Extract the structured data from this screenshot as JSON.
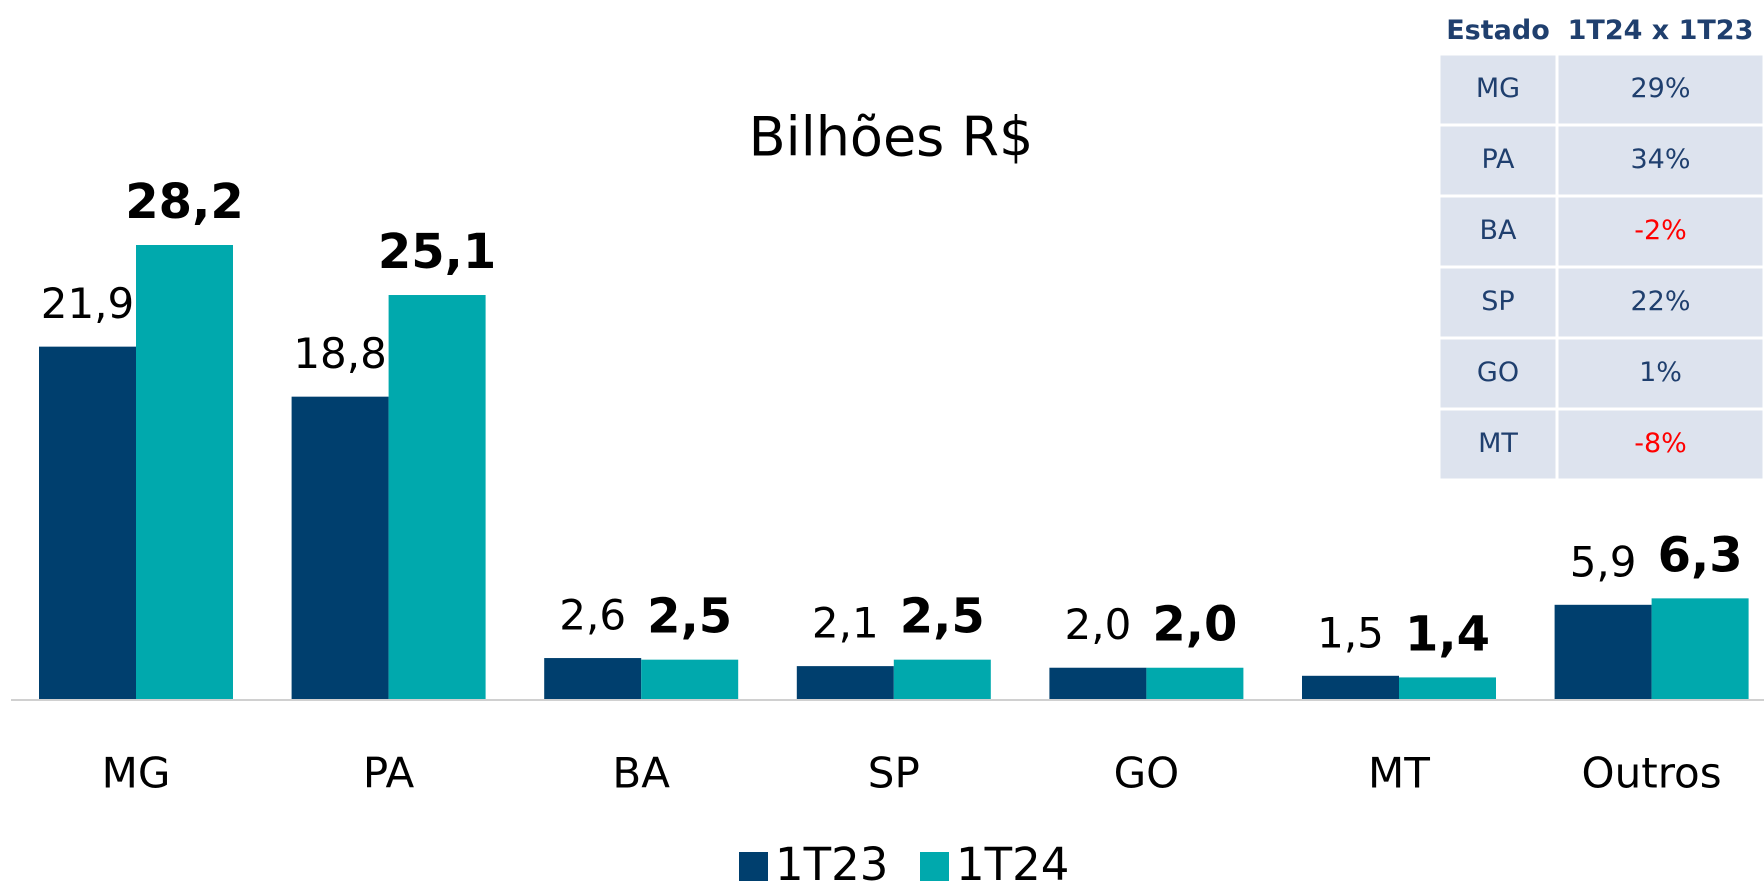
{
  "chart_data": {
    "type": "bar",
    "title": "Bilhões R$",
    "categories": [
      "MG",
      "PA",
      "BA",
      "SP",
      "GO",
      "MT",
      "Outros"
    ],
    "series": [
      {
        "name": "1T23",
        "color": "#003f6e",
        "values": [
          21.9,
          18.8,
          2.6,
          2.1,
          2.0,
          1.5,
          5.9
        ],
        "value_labels": [
          "21,9",
          "18,8",
          "2,6",
          "2,1",
          "2,0",
          "1,5",
          "5,9"
        ]
      },
      {
        "name": "1T24",
        "color": "#00a9ad",
        "values": [
          28.2,
          25.1,
          2.5,
          2.5,
          2.0,
          1.4,
          6.3
        ],
        "value_labels": [
          "28,2",
          "25,1",
          "2,5",
          "2,5",
          "2,0",
          "1,4",
          "6,3"
        ]
      }
    ],
    "legend": "bottom"
  },
  "table": {
    "header": [
      "Estado",
      "1T24 x 1T23"
    ],
    "rows": [
      [
        "MG",
        "29%"
      ],
      [
        "PA",
        "34%"
      ],
      [
        "BA",
        "-2%"
      ],
      [
        "SP",
        "22%"
      ],
      [
        "GO",
        "1%"
      ],
      [
        "MT",
        "-8%"
      ]
    ],
    "text_color": "#1f3f6e",
    "negative_color": "#ff0000",
    "fill": "#dde3ee"
  }
}
